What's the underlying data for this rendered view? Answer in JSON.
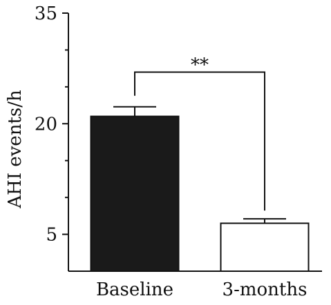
{
  "chart_data": {
    "type": "bar",
    "title": "",
    "xlabel": "",
    "ylabel": "AHI events/h",
    "categories": [
      "Baseline",
      "3-months"
    ],
    "values": [
      21.0,
      6.5
    ],
    "error_upper": [
      22.3,
      7.1
    ],
    "bar_fills": [
      "#1a1a1a",
      "#ffffff"
    ],
    "ylim": [
      0,
      35
    ],
    "y_major_ticks": [
      5,
      20,
      35
    ],
    "y_minor_ticks": [
      10,
      15,
      25,
      30
    ],
    "significance": {
      "label": "**",
      "from": 0,
      "to": 1,
      "level": 27.0
    },
    "grid": false,
    "legend": "none"
  }
}
